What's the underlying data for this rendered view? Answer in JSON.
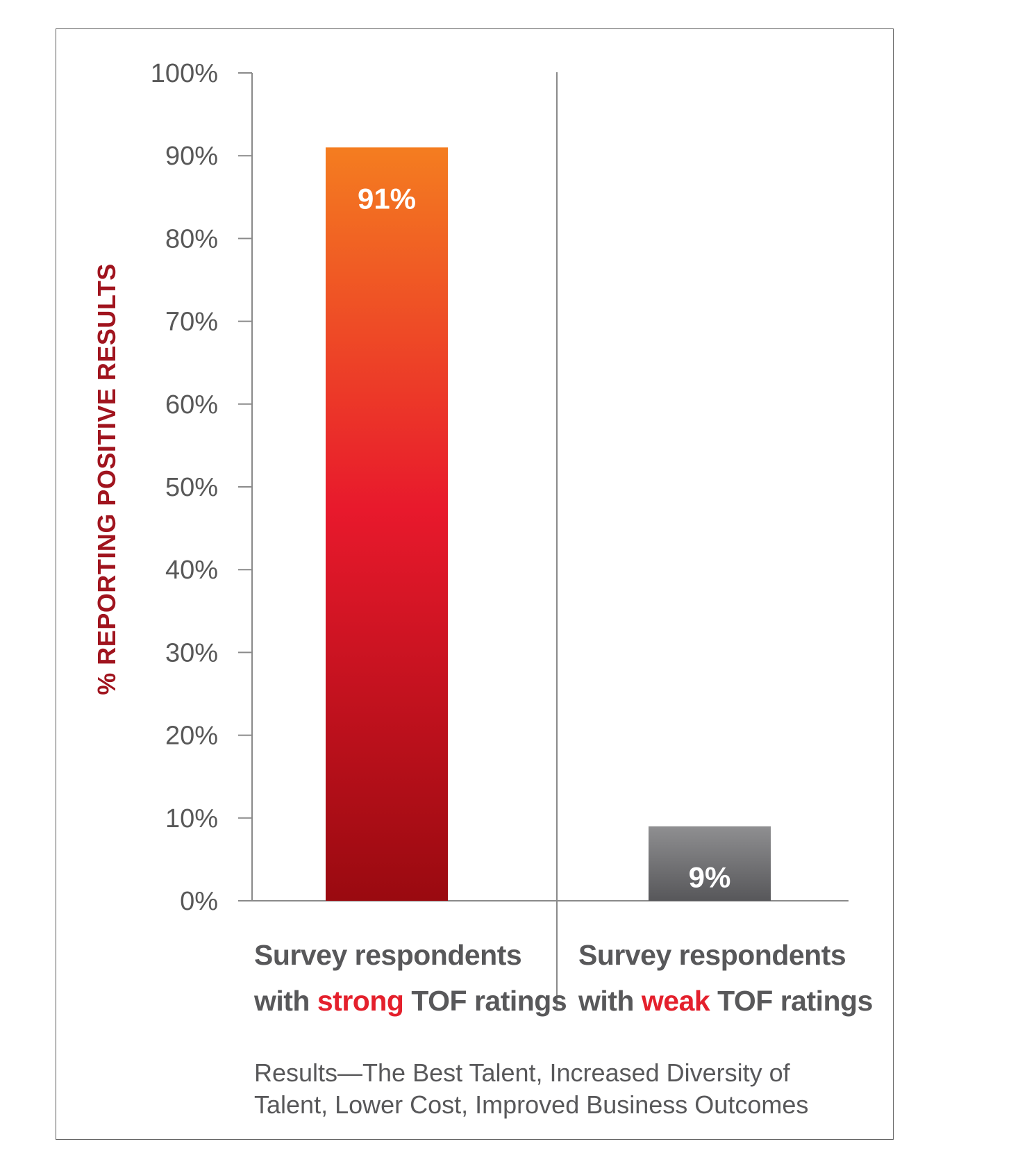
{
  "chart_data": {
    "type": "bar",
    "ylabel": "% REPORTING POSITIVE RESULTS",
    "xlabel": "",
    "ylim": [
      0,
      100
    ],
    "y_ticks": [
      "0%",
      "10%",
      "20%",
      "30%",
      "40%",
      "50%",
      "60%",
      "70%",
      "80%",
      "90%",
      "100%"
    ],
    "categories": [
      {
        "prefix": "Survey respondents",
        "pre": "with ",
        "highlight": "strong",
        "post": " TOF ratings"
      },
      {
        "prefix": "Survey respondents",
        "pre": "with ",
        "highlight": "weak",
        "post": " TOF ratings"
      }
    ],
    "values": [
      91,
      9
    ],
    "data_labels": [
      "91%",
      "9%"
    ],
    "bar_colors": [
      {
        "top": "#f47d20",
        "mid": "#e8192c",
        "bottom": "#9a0a10"
      },
      {
        "top": "#8f8f91",
        "bottom": "#57575a"
      }
    ],
    "highlight_color": "#e4202c",
    "axis_title_color": "#a0141e",
    "grid": false,
    "legend": "none"
  },
  "caption": {
    "line1": "Results—The Best Talent, Increased Diversity of",
    "line2": "Talent, Lower Cost, Improved Business Outcomes"
  }
}
